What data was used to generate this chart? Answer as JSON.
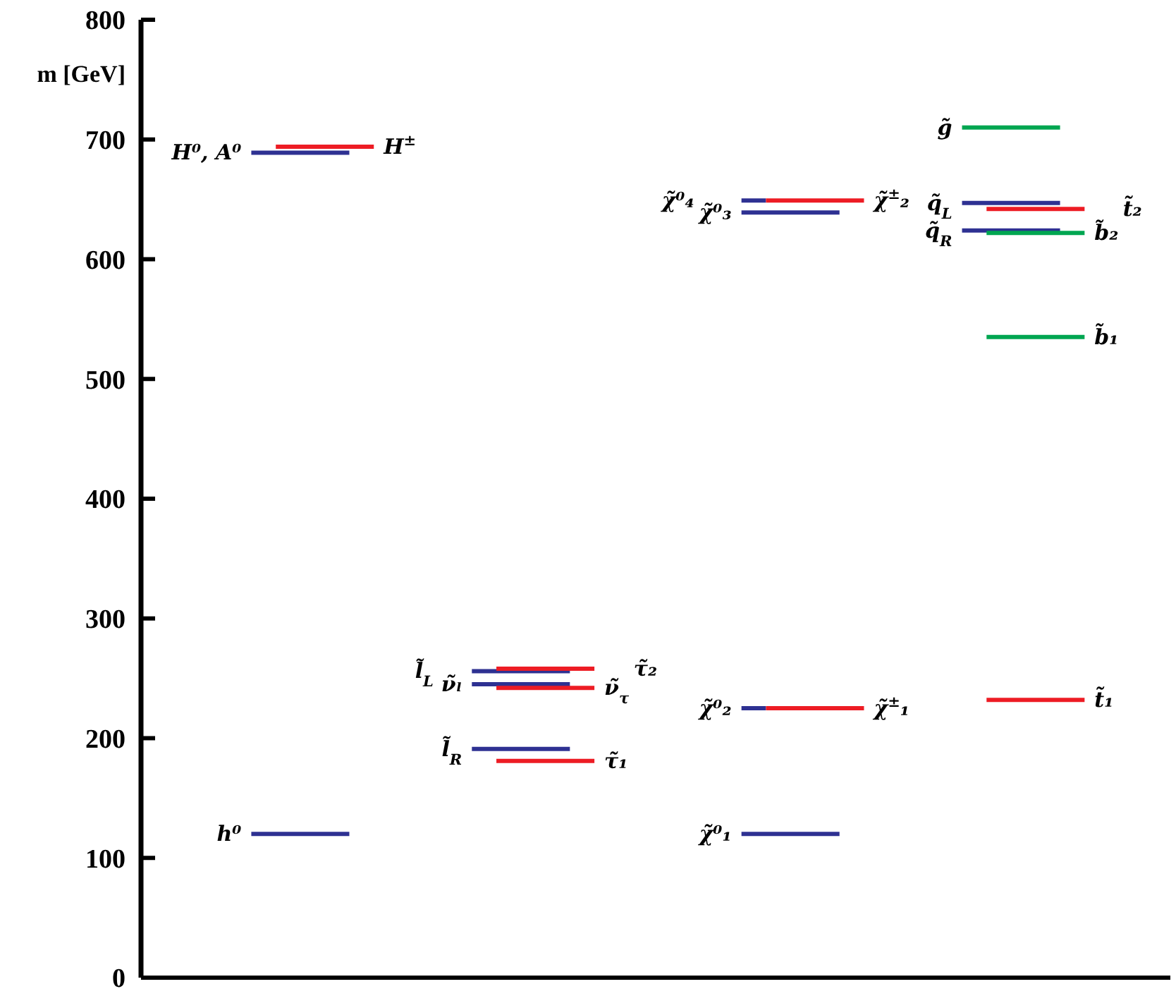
{
  "chart_data": {
    "type": "line",
    "ylabel": "m [GeV]",
    "ylim": [
      0,
      800
    ],
    "yticks": [
      0,
      100,
      200,
      300,
      400,
      500,
      600,
      700,
      800
    ],
    "tick_labels": "y",
    "categories": [
      null,
      null,
      null,
      null,
      null,
      null,
      null,
      null,
      null,
      null,
      null,
      null,
      null,
      null,
      null,
      null,
      null,
      null,
      null,
      null,
      null,
      null,
      null,
      null,
      null,
      null,
      null,
      null,
      null,
      null,
      null,
      null,
      null,
      null,
      null,
      null,
      null,
      null,
      null,
      null,
      null,
      null
    ],
    "series": [
      {
        "name": "h⁰",
        "color": "#2e3192",
        "values": [
          null,
          null,
          null,
          null,
          120,
          120,
          120,
          120,
          120,
          null,
          null,
          null,
          null,
          null,
          null,
          null,
          null,
          null,
          null,
          null,
          null,
          null,
          null,
          null,
          null,
          null,
          null,
          null,
          null,
          null,
          null,
          null,
          null,
          null,
          null,
          null,
          null,
          null,
          null,
          null,
          null,
          null
        ]
      },
      {
        "name": "H⁰, A⁰",
        "color": "#2e3192",
        "values": [
          null,
          null,
          null,
          null,
          689,
          689,
          689,
          689,
          689,
          null,
          null,
          null,
          null,
          null,
          null,
          null,
          null,
          null,
          null,
          null,
          null,
          null,
          null,
          null,
          null,
          null,
          null,
          null,
          null,
          null,
          null,
          null,
          null,
          null,
          null,
          null,
          null,
          null,
          null,
          null,
          null,
          null
        ]
      },
      {
        "name": "H$^{±}$",
        "color": "#ed1c24",
        "values": [
          null,
          null,
          null,
          null,
          null,
          694,
          694,
          694,
          694,
          694,
          null,
          null,
          null,
          null,
          null,
          null,
          null,
          null,
          null,
          null,
          null,
          null,
          null,
          null,
          null,
          null,
          null,
          null,
          null,
          null,
          null,
          null,
          null,
          null,
          null,
          null,
          null,
          null,
          null,
          null,
          null,
          null
        ]
      },
      {
        "name": "l̃$_{L}$",
        "color": "#2e3192",
        "values": [
          null,
          null,
          null,
          null,
          null,
          null,
          null,
          null,
          null,
          null,
          null,
          null,
          null,
          256,
          256,
          256,
          256,
          256,
          null,
          null,
          null,
          null,
          null,
          null,
          null,
          null,
          null,
          null,
          null,
          null,
          null,
          null,
          null,
          null,
          null,
          null,
          null,
          null,
          null,
          null,
          null,
          null
        ]
      },
      {
        "name": "ν̃ₗ",
        "color": "#2e3192",
        "values": [
          null,
          null,
          null,
          null,
          null,
          null,
          null,
          null,
          null,
          null,
          null,
          null,
          null,
          245,
          245,
          245,
          245,
          245,
          null,
          null,
          null,
          null,
          null,
          null,
          null,
          null,
          null,
          null,
          null,
          null,
          null,
          null,
          null,
          null,
          null,
          null,
          null,
          null,
          null,
          null,
          null,
          null
        ]
      },
      {
        "name": "l̃$_{R}$",
        "color": "#2e3192",
        "values": [
          null,
          null,
          null,
          null,
          null,
          null,
          null,
          null,
          null,
          null,
          null,
          null,
          null,
          191,
          191,
          191,
          191,
          191,
          null,
          null,
          null,
          null,
          null,
          null,
          null,
          null,
          null,
          null,
          null,
          null,
          null,
          null,
          null,
          null,
          null,
          null,
          null,
          null,
          null,
          null,
          null,
          null
        ]
      },
      {
        "name": "τ̃₂",
        "color": "#ed1c24",
        "values": [
          null,
          null,
          null,
          null,
          null,
          null,
          null,
          null,
          null,
          null,
          null,
          null,
          null,
          null,
          258,
          258,
          258,
          258,
          258,
          null,
          null,
          null,
          null,
          null,
          null,
          null,
          null,
          null,
          null,
          null,
          null,
          null,
          null,
          null,
          null,
          null,
          null,
          null,
          null,
          null,
          null,
          null
        ]
      },
      {
        "name": "ν̃$_{τ}$",
        "color": "#ed1c24",
        "values": [
          null,
          null,
          null,
          null,
          null,
          null,
          null,
          null,
          null,
          null,
          null,
          null,
          null,
          null,
          242,
          242,
          242,
          242,
          242,
          null,
          null,
          null,
          null,
          null,
          null,
          null,
          null,
          null,
          null,
          null,
          null,
          null,
          null,
          null,
          null,
          null,
          null,
          null,
          null,
          null,
          null,
          null
        ]
      },
      {
        "name": "τ̃₁",
        "color": "#ed1c24",
        "values": [
          null,
          null,
          null,
          null,
          null,
          null,
          null,
          null,
          null,
          null,
          null,
          null,
          null,
          null,
          181,
          181,
          181,
          181,
          181,
          null,
          null,
          null,
          null,
          null,
          null,
          null,
          null,
          null,
          null,
          null,
          null,
          null,
          null,
          null,
          null,
          null,
          null,
          null,
          null,
          null,
          null,
          null
        ]
      },
      {
        "name": "χ̃⁰₄",
        "color": "#2e3192",
        "values": [
          null,
          null,
          null,
          null,
          null,
          null,
          null,
          null,
          null,
          null,
          null,
          null,
          null,
          null,
          null,
          null,
          null,
          null,
          null,
          null,
          null,
          null,
          null,
          null,
          649,
          649,
          null,
          null,
          null,
          null,
          null,
          null,
          null,
          null,
          null,
          null,
          null,
          null,
          null,
          null,
          null,
          null
        ]
      },
      {
        "name": "χ̃⁰₃",
        "color": "#2e3192",
        "values": [
          null,
          null,
          null,
          null,
          null,
          null,
          null,
          null,
          null,
          null,
          null,
          null,
          null,
          null,
          null,
          null,
          null,
          null,
          null,
          null,
          null,
          null,
          null,
          null,
          639,
          639,
          639,
          639,
          639,
          null,
          null,
          null,
          null,
          null,
          null,
          null,
          null,
          null,
          null,
          null,
          null,
          null
        ]
      },
      {
        "name": "χ̃⁰₂",
        "color": "#2e3192",
        "values": [
          null,
          null,
          null,
          null,
          null,
          null,
          null,
          null,
          null,
          null,
          null,
          null,
          null,
          null,
          null,
          null,
          null,
          null,
          null,
          null,
          null,
          null,
          null,
          null,
          225,
          225,
          null,
          null,
          null,
          null,
          null,
          null,
          null,
          null,
          null,
          null,
          null,
          null,
          null,
          null,
          null,
          null
        ]
      },
      {
        "name": "χ̃⁰₁",
        "color": "#2e3192",
        "values": [
          null,
          null,
          null,
          null,
          null,
          null,
          null,
          null,
          null,
          null,
          null,
          null,
          null,
          null,
          null,
          null,
          null,
          null,
          null,
          null,
          null,
          null,
          null,
          null,
          120,
          120,
          120,
          120,
          120,
          null,
          null,
          null,
          null,
          null,
          null,
          null,
          null,
          null,
          null,
          null,
          null,
          null
        ]
      },
      {
        "name": "χ̃$^{±}$₂",
        "color": "#ed1c24",
        "values": [
          null,
          null,
          null,
          null,
          null,
          null,
          null,
          null,
          null,
          null,
          null,
          null,
          null,
          null,
          null,
          null,
          null,
          null,
          null,
          null,
          null,
          null,
          null,
          null,
          null,
          649,
          649,
          649,
          649,
          649,
          null,
          null,
          null,
          null,
          null,
          null,
          null,
          null,
          null,
          null,
          null,
          null
        ]
      },
      {
        "name": "χ̃$^{±}$₁",
        "color": "#ed1c24",
        "values": [
          null,
          null,
          null,
          null,
          null,
          null,
          null,
          null,
          null,
          null,
          null,
          null,
          null,
          null,
          null,
          null,
          null,
          null,
          null,
          null,
          null,
          null,
          null,
          null,
          null,
          225,
          225,
          225,
          225,
          225,
          null,
          null,
          null,
          null,
          null,
          null,
          null,
          null,
          null,
          null,
          null,
          null
        ]
      },
      {
        "name": "g̃",
        "color": "#00a651",
        "values": [
          null,
          null,
          null,
          null,
          null,
          null,
          null,
          null,
          null,
          null,
          null,
          null,
          null,
          null,
          null,
          null,
          null,
          null,
          null,
          null,
          null,
          null,
          null,
          null,
          null,
          null,
          null,
          null,
          null,
          null,
          null,
          null,
          null,
          710,
          710,
          710,
          710,
          710,
          null,
          null,
          null,
          null
        ]
      },
      {
        "name": "q̃$_{L}$",
        "color": "#2e3192",
        "values": [
          null,
          null,
          null,
          null,
          null,
          null,
          null,
          null,
          null,
          null,
          null,
          null,
          null,
          null,
          null,
          null,
          null,
          null,
          null,
          null,
          null,
          null,
          null,
          null,
          null,
          null,
          null,
          null,
          null,
          null,
          null,
          null,
          null,
          647,
          647,
          647,
          647,
          647,
          null,
          null,
          null,
          null
        ]
      },
      {
        "name": "q̃$_{R}$",
        "color": "#2e3192",
        "values": [
          null,
          null,
          null,
          null,
          null,
          null,
          null,
          null,
          null,
          null,
          null,
          null,
          null,
          null,
          null,
          null,
          null,
          null,
          null,
          null,
          null,
          null,
          null,
          null,
          null,
          null,
          null,
          null,
          null,
          null,
          null,
          null,
          null,
          624,
          624,
          624,
          624,
          624,
          null,
          null,
          null,
          null
        ]
      },
      {
        "name": "t̃₂",
        "color": "#ed1c24",
        "values": [
          null,
          null,
          null,
          null,
          null,
          null,
          null,
          null,
          null,
          null,
          null,
          null,
          null,
          null,
          null,
          null,
          null,
          null,
          null,
          null,
          null,
          null,
          null,
          null,
          null,
          null,
          null,
          null,
          null,
          null,
          null,
          null,
          null,
          null,
          642,
          642,
          642,
          642,
          642,
          null,
          null,
          null
        ]
      },
      {
        "name": "b̃₂",
        "color": "#00a651",
        "values": [
          null,
          null,
          null,
          null,
          null,
          null,
          null,
          null,
          null,
          null,
          null,
          null,
          null,
          null,
          null,
          null,
          null,
          null,
          null,
          null,
          null,
          null,
          null,
          null,
          null,
          null,
          null,
          null,
          null,
          null,
          null,
          null,
          null,
          null,
          622,
          622,
          622,
          622,
          622,
          null,
          null,
          null
        ]
      },
      {
        "name": "b̃₁",
        "color": "#00a651",
        "values": [
          null,
          null,
          null,
          null,
          null,
          null,
          null,
          null,
          null,
          null,
          null,
          null,
          null,
          null,
          null,
          null,
          null,
          null,
          null,
          null,
          null,
          null,
          null,
          null,
          null,
          null,
          null,
          null,
          null,
          null,
          null,
          null,
          null,
          null,
          535,
          535,
          535,
          535,
          535,
          null,
          null,
          null
        ]
      },
      {
        "name": "t̃₁",
        "color": "#ed1c24",
        "values": [
          null,
          null,
          null,
          null,
          null,
          null,
          null,
          null,
          null,
          null,
          null,
          null,
          null,
          null,
          null,
          null,
          null,
          null,
          null,
          null,
          null,
          null,
          null,
          null,
          null,
          null,
          null,
          null,
          null,
          null,
          null,
          null,
          null,
          null,
          232,
          232,
          232,
          232,
          232,
          null,
          null,
          null
        ]
      }
    ]
  }
}
